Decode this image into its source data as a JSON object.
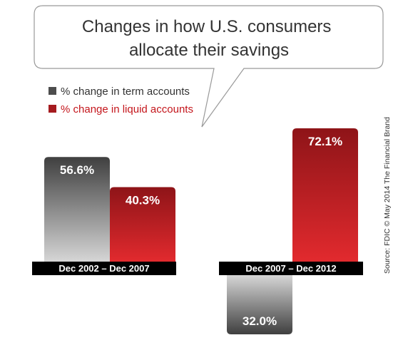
{
  "chart_data": {
    "type": "bar",
    "title": "Changes in how U.S. consumers allocate their savings",
    "title_lines": [
      "Changes in how U.S. consumers",
      "allocate their savings"
    ],
    "categories": [
      "Dec 2002 – Dec 2007",
      "Dec 2007 – Dec 2012"
    ],
    "series": [
      {
        "name": "% change in term accounts",
        "values": [
          56.6,
          -32.0
        ],
        "labels": [
          "56.6%",
          "32.0%"
        ],
        "color": "#4d4d4d"
      },
      {
        "name": "% change in liquid accounts",
        "values": [
          40.3,
          72.1
        ],
        "labels": [
          "40.3%",
          "72.1%"
        ],
        "color": "#a51b1f"
      }
    ],
    "legend_position": "top-left",
    "grid": false,
    "source": "Source: FDIC © May 2014 The Financial Brand"
  },
  "colors": {
    "term_top": "#3f3f3f",
    "term_bottom": "#d6d6d6",
    "liquid_top": "#8e1418",
    "liquid_bottom": "#e22a2e",
    "axis_bar": "#000000",
    "legend_term_text": "#333333",
    "legend_liquid_text": "#c4161c"
  }
}
